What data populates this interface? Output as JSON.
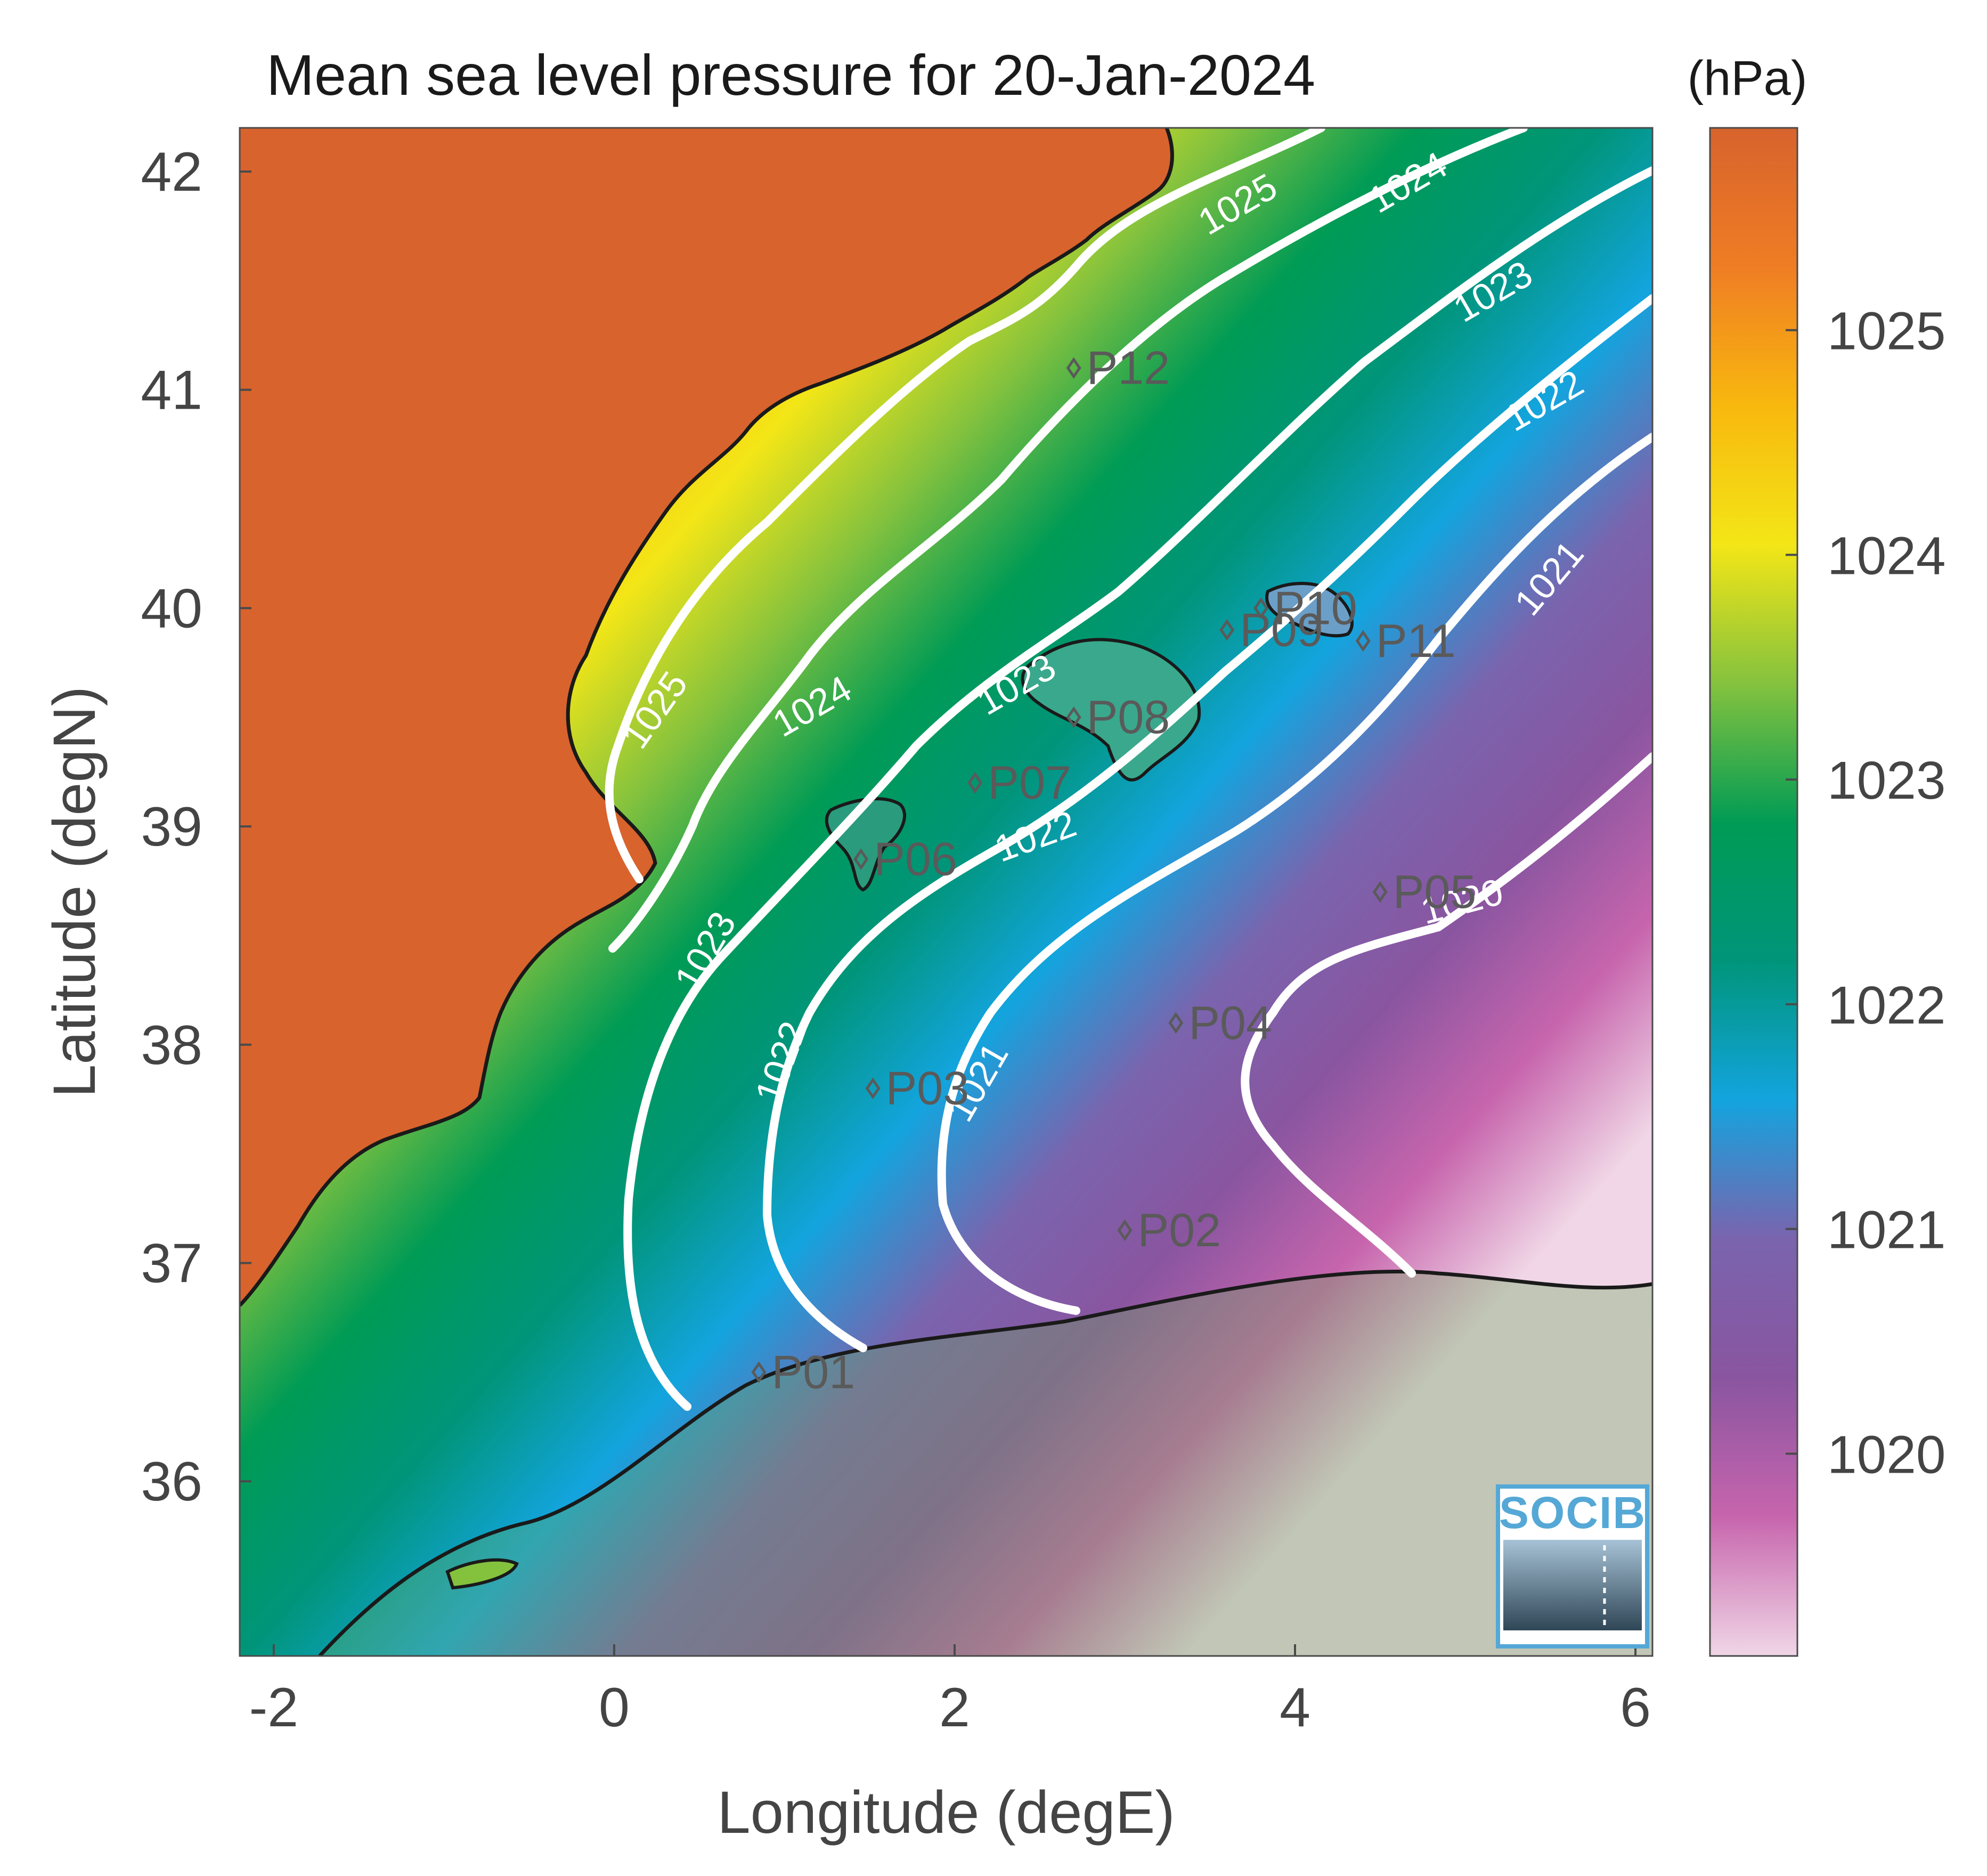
{
  "title": "Mean sea level pressure for 20-Jan-2024",
  "colorbar": {
    "unit": "(hPa)",
    "ticks": [
      "1025",
      "1024",
      "1023",
      "1022",
      "1021",
      "1020"
    ],
    "range": [
      1019.1,
      1025.9
    ],
    "colors": [
      "#f0d6e6",
      "#c765ad",
      "#8a55a0",
      "#7a64ae",
      "#13a4de",
      "#00957a",
      "#009b55",
      "#84c23e",
      "#f3e617",
      "#f8b80e",
      "#ef7d24",
      "#d8632d"
    ]
  },
  "axes": {
    "xlabel": "Longitude (degE)",
    "ylabel": "Latitude (degN)",
    "xticks": [
      "-2",
      "0",
      "2",
      "4",
      "6"
    ],
    "yticks": [
      "42",
      "41",
      "40",
      "39",
      "38",
      "37",
      "36"
    ],
    "xlim": [
      -2.2,
      6.1
    ],
    "ylim": [
      35.2,
      42.2
    ]
  },
  "contours": {
    "levels": [
      1025,
      1024,
      1023,
      1022,
      1021,
      1020
    ],
    "color": "#ffffff",
    "labels": [
      {
        "text": "1025",
        "lon": 3.7,
        "lat": 41.8,
        "angle": -30
      },
      {
        "text": "1025",
        "lon": 0.3,
        "lat": 39.5,
        "angle": -55
      },
      {
        "text": "1024",
        "lon": 4.7,
        "lat": 41.9,
        "angle": -30
      },
      {
        "text": "1024",
        "lon": 1.2,
        "lat": 39.5,
        "angle": -30
      },
      {
        "text": "1023",
        "lon": 5.2,
        "lat": 41.4,
        "angle": -30
      },
      {
        "text": "1023",
        "lon": 2.4,
        "lat": 39.6,
        "angle": -30
      },
      {
        "text": "1023",
        "lon": 0.6,
        "lat": 38.4,
        "angle": -60
      },
      {
        "text": "1022",
        "lon": 5.5,
        "lat": 40.9,
        "angle": -30
      },
      {
        "text": "1022",
        "lon": 2.5,
        "lat": 38.9,
        "angle": -20
      },
      {
        "text": "1022",
        "lon": 1.05,
        "lat": 37.9,
        "angle": -70
      },
      {
        "text": "1021",
        "lon": 5.55,
        "lat": 40.1,
        "angle": -50
      },
      {
        "text": "1021",
        "lon": 2.2,
        "lat": 37.8,
        "angle": -60
      },
      {
        "text": "1020",
        "lon": 5.0,
        "lat": 38.6,
        "angle": -15
      }
    ]
  },
  "stations": [
    {
      "name": "P01",
      "lon": 0.85,
      "lat": 36.5
    },
    {
      "name": "P02",
      "lon": 3.0,
      "lat": 37.15
    },
    {
      "name": "P03",
      "lon": 1.52,
      "lat": 37.8
    },
    {
      "name": "P04",
      "lon": 3.3,
      "lat": 38.1
    },
    {
      "name": "P05",
      "lon": 4.5,
      "lat": 38.7
    },
    {
      "name": "P06",
      "lon": 1.45,
      "lat": 38.85
    },
    {
      "name": "P07",
      "lon": 2.12,
      "lat": 39.2
    },
    {
      "name": "P08",
      "lon": 2.7,
      "lat": 39.5
    },
    {
      "name": "P09",
      "lon": 3.6,
      "lat": 39.9
    },
    {
      "name": "P10",
      "lon": 3.8,
      "lat": 40.0
    },
    {
      "name": "P11",
      "lon": 4.4,
      "lat": 39.85
    },
    {
      "name": "P12",
      "lon": 2.7,
      "lat": 41.1
    }
  ],
  "logo": {
    "text": "SOCIB"
  }
}
